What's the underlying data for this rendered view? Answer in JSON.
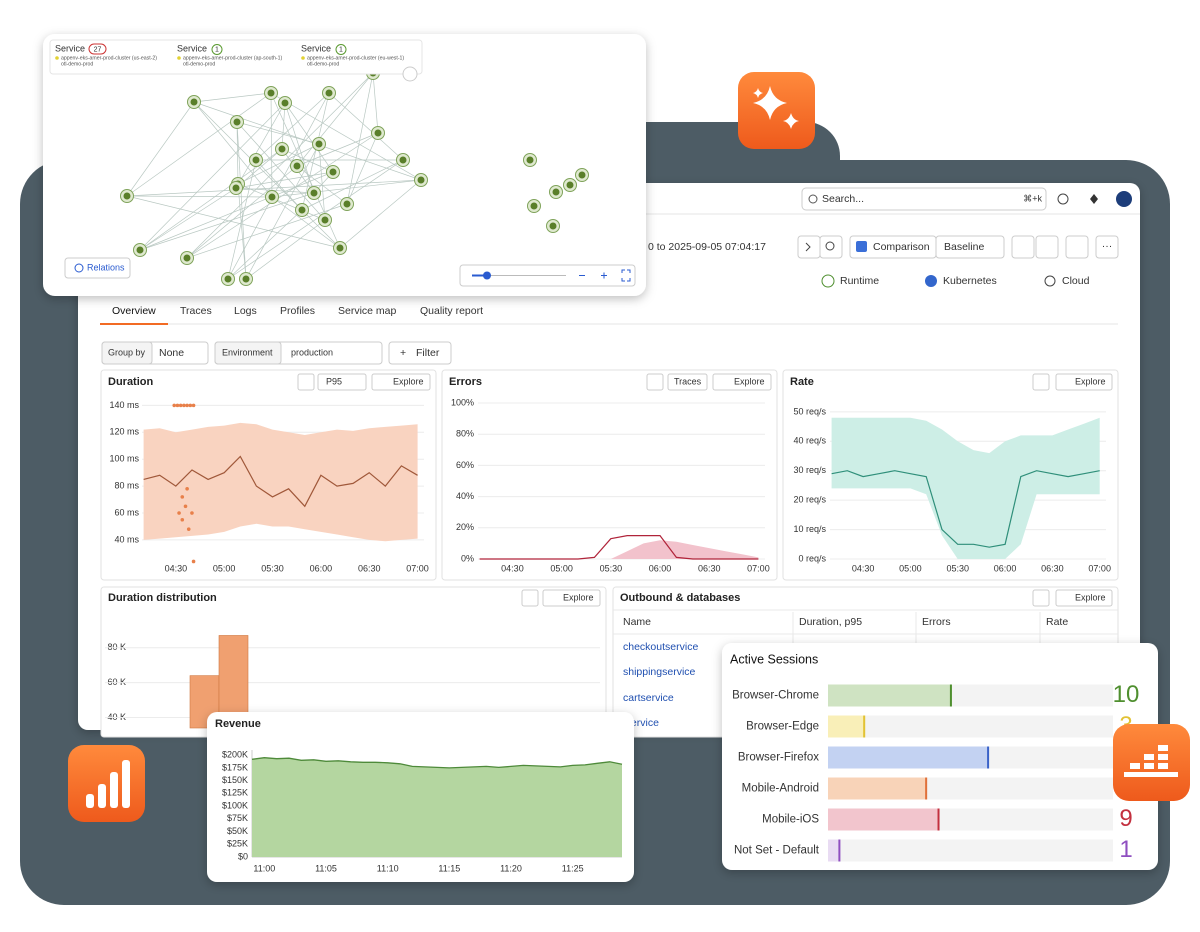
{
  "header": {
    "search": "Search...",
    "shortcut": "⌘+k",
    "time_range": "0 to 2025-09-05 07:04:17",
    "comparison": "Comparison",
    "baseline": "Baseline"
  },
  "scopes": [
    "Runtime",
    "Kubernetes",
    "Cloud"
  ],
  "tabs": [
    "Overview",
    "Traces",
    "Logs",
    "Profiles",
    "Service map",
    "Quality report"
  ],
  "filters": {
    "group_by_label": "Group by",
    "group_by_value": "None",
    "environment_label": "Environment",
    "environment_value": "production",
    "add_filter": "Filter"
  },
  "buttons": {
    "explore": "Explore",
    "traces": "Traces",
    "p95": "P95"
  },
  "service_map": {
    "services": [
      {
        "label": "Service",
        "count": 27,
        "cluster": "appenv-eks-amer-prod-cluster (us-east-2)",
        "namespace": "otl-demo-prod"
      },
      {
        "label": "Service",
        "count": 1,
        "cluster": "appenv-eks-amer-prod-cluster (ap-south-1)",
        "namespace": "otl-demo-prod"
      },
      {
        "label": "Service",
        "count": 1,
        "cluster": "appenv-eks-amer-prod-cluster (eu-west-1)",
        "namespace": "otl-demo-prod"
      }
    ],
    "relations": "Relations"
  },
  "table": {
    "title": "Outbound & databases",
    "columns": [
      "Name",
      "Duration, p95",
      "Errors",
      "Rate"
    ],
    "rows": [
      "checkoutservice",
      "shippingservice",
      "cartservice",
      "adservice"
    ]
  },
  "chart_data": [
    {
      "type": "line",
      "title": "Duration",
      "x": [
        "04:10",
        "04:20",
        "04:30",
        "04:40",
        "04:50",
        "05:00",
        "05:10",
        "05:20",
        "05:30",
        "05:40",
        "05:50",
        "06:00",
        "06:10",
        "06:20",
        "06:30",
        "06:40",
        "06:50",
        "07:00"
      ],
      "series": [
        {
          "color": "#a0583a",
          "values": [
            85,
            88,
            80,
            92,
            85,
            90,
            102,
            80,
            72,
            78,
            65,
            88,
            80,
            82,
            90,
            80,
            95,
            88
          ]
        }
      ],
      "band": {
        "color": "#f9d3c0",
        "upper": [
          122,
          123,
          120,
          122,
          124,
          125,
          127,
          126,
          122,
          120,
          118,
          120,
          122,
          121,
          123,
          124,
          125,
          126
        ],
        "lower": [
          40,
          41,
          42,
          43,
          44,
          46,
          50,
          52,
          50,
          50,
          48,
          46,
          44,
          42,
          40,
          39,
          40,
          41
        ]
      },
      "outliers": {
        "color": "#e8804a",
        "x": [
          "04:29",
          "04:31",
          "04:33",
          "04:35",
          "04:37",
          "04:39",
          "04:41",
          "04:37",
          "04:34",
          "04:36",
          "04:40",
          "04:32",
          "04:34",
          "04:38",
          "04:41"
        ],
        "values": [
          140,
          140,
          140,
          140,
          140,
          140,
          140,
          78,
          72,
          65,
          60,
          60,
          55,
          48,
          24
        ]
      },
      "xlim": [
        "04:09",
        "07:04"
      ],
      "ylim": [
        34,
        144
      ],
      "xticks": [
        "04:30",
        "05:00",
        "05:30",
        "06:00",
        "06:30",
        "07:00"
      ],
      "yticks": [
        {
          "value": 40,
          "label": "40 ms"
        },
        {
          "value": 60,
          "label": "60 ms"
        },
        {
          "value": 80,
          "label": "80 ms"
        },
        {
          "value": 100,
          "label": "100 ms"
        },
        {
          "value": 120,
          "label": "120 ms"
        },
        {
          "value": 140,
          "label": "140 ms"
        }
      ],
      "grid": true
    },
    {
      "type": "line",
      "title": "Errors",
      "x": [
        "04:10",
        "04:20",
        "04:30",
        "04:40",
        "04:50",
        "05:00",
        "05:10",
        "05:20",
        "05:30",
        "05:40",
        "05:50",
        "06:00",
        "06:10",
        "06:20",
        "06:30",
        "06:40",
        "06:50",
        "07:00"
      ],
      "series": [
        {
          "color": "#b0243a",
          "values": [
            0,
            0,
            0,
            0,
            0,
            0,
            0,
            1,
            13,
            15,
            15,
            15,
            1,
            0,
            0,
            0,
            0,
            0
          ]
        }
      ],
      "area": {
        "color": "#f2c2cc",
        "values": [
          0,
          0,
          0,
          0,
          0,
          0,
          0,
          0,
          0,
          5,
          10,
          12,
          11,
          9,
          7,
          5,
          3,
          1
        ]
      },
      "xlim": [
        "04:09",
        "07:04"
      ],
      "ylim": [
        0,
        100
      ],
      "xticks": [
        "04:30",
        "05:00",
        "05:30",
        "06:00",
        "06:30",
        "07:00"
      ],
      "yticks": [
        {
          "value": 0,
          "label": "0%"
        },
        {
          "value": 20,
          "label": "20%"
        },
        {
          "value": 40,
          "label": "40%"
        },
        {
          "value": 60,
          "label": "60%"
        },
        {
          "value": 80,
          "label": "80%"
        },
        {
          "value": 100,
          "label": "100%"
        }
      ],
      "grid": true
    },
    {
      "type": "line",
      "title": "Rate",
      "x": [
        "04:10",
        "04:20",
        "04:30",
        "04:40",
        "04:50",
        "05:00",
        "05:10",
        "05:20",
        "05:30",
        "05:40",
        "05:50",
        "06:00",
        "06:10",
        "06:20",
        "06:30",
        "06:40",
        "06:50",
        "07:00"
      ],
      "series": [
        {
          "color": "#2f8f7a",
          "values": [
            29,
            30,
            28,
            29,
            30,
            29,
            28,
            10,
            5,
            5,
            4,
            5,
            28,
            30,
            29,
            28,
            29,
            30
          ]
        }
      ],
      "band": {
        "color": "#cdeee6",
        "upper": [
          48,
          48,
          48,
          48,
          48,
          48,
          47,
          44,
          40,
          37,
          36,
          40,
          42,
          42,
          42,
          44,
          46,
          48
        ],
        "lower": [
          24,
          24,
          24,
          24,
          24,
          24,
          22,
          8,
          0,
          0,
          0,
          0,
          5,
          22,
          22,
          22,
          22,
          22
        ]
      },
      "xlim": [
        "04:09",
        "07:04"
      ],
      "ylim": [
        0,
        52
      ],
      "xticks": [
        "04:30",
        "05:00",
        "05:30",
        "06:00",
        "06:30",
        "07:00"
      ],
      "yticks": [
        {
          "value": 0,
          "label": "0 req/s"
        },
        {
          "value": 10,
          "label": "10 req/s"
        },
        {
          "value": 20,
          "label": "20 req/s"
        },
        {
          "value": 30,
          "label": "30 req/s"
        },
        {
          "value": 40,
          "label": "40 req/s"
        },
        {
          "value": 50,
          "label": "50 req/s"
        }
      ],
      "grid": true
    },
    {
      "type": "bar",
      "title": "Duration distribution",
      "categories": [
        null,
        null
      ],
      "values": [
        64000,
        87000
      ],
      "color": "#f0a070",
      "edge": "#d07840",
      "ylim": [
        34000,
        93000
      ],
      "yticks": [
        {
          "value": 40000,
          "label": "40 K"
        },
        {
          "value": 60000,
          "label": "60 K"
        },
        {
          "value": 80000,
          "label": "80 K"
        }
      ],
      "grid": true
    },
    {
      "type": "area",
      "title": "Revenue",
      "x": [
        "10:59",
        "11:00",
        "11:01",
        "11:02",
        "11:03",
        "11:04",
        "11:05",
        "11:06",
        "11:07",
        "11:08",
        "11:09",
        "11:10",
        "11:11",
        "11:12",
        "11:13",
        "11:14",
        "11:15",
        "11:16",
        "11:17",
        "11:18",
        "11:19",
        "11:20",
        "11:21",
        "11:22",
        "11:23",
        "11:24",
        "11:25",
        "11:26",
        "11:27",
        "11:28",
        "11:29"
      ],
      "values": [
        192000,
        195000,
        193000,
        194000,
        190000,
        191000,
        188000,
        189000,
        187000,
        186000,
        186000,
        185000,
        183000,
        178000,
        177000,
        176000,
        175000,
        176000,
        177000,
        178000,
        176000,
        178000,
        180000,
        179000,
        178000,
        177000,
        180000,
        181000,
        184000,
        187000,
        182000
      ],
      "color": "#4e8a3a",
      "fill": "#b4d6a0",
      "xlim": [
        "10:59",
        "11:29"
      ],
      "ylim": [
        0,
        220000
      ],
      "xticks": [
        "11:00",
        "11:05",
        "11:10",
        "11:15",
        "11:20",
        "11:25"
      ],
      "yticks": [
        {
          "value": 0,
          "label": "$0"
        },
        {
          "value": 25000,
          "label": "$25K"
        },
        {
          "value": 50000,
          "label": "$50K"
        },
        {
          "value": 75000,
          "label": "$75K"
        },
        {
          "value": 100000,
          "label": "$100K"
        },
        {
          "value": 125000,
          "label": "$125K"
        },
        {
          "value": 150000,
          "label": "$150K"
        },
        {
          "value": 175000,
          "label": "$175K"
        },
        {
          "value": 200000,
          "label": "$200K"
        }
      ],
      "grid": false
    },
    {
      "type": "bar",
      "orientation": "horizontal",
      "title": "Active Sessions",
      "categories": [
        "Browser-Chrome",
        "Browser-Edge",
        "Browser-Firefox",
        "Mobile-Android",
        "Mobile-iOS",
        "Not Set - Default"
      ],
      "values": [
        10,
        3,
        13,
        8,
        9,
        1
      ],
      "colors": [
        "#cfe3c2",
        "#f9efb8",
        "#c3d2f2",
        "#f8d3b8",
        "#f2c5cd",
        "#e9dcf3"
      ],
      "edge_colors": [
        "#4f8f2f",
        "#e2c234",
        "#3a62c8",
        "#e0703a",
        "#c3303f",
        "#8f4fc0"
      ],
      "xlim": [
        0,
        23
      ]
    }
  ]
}
